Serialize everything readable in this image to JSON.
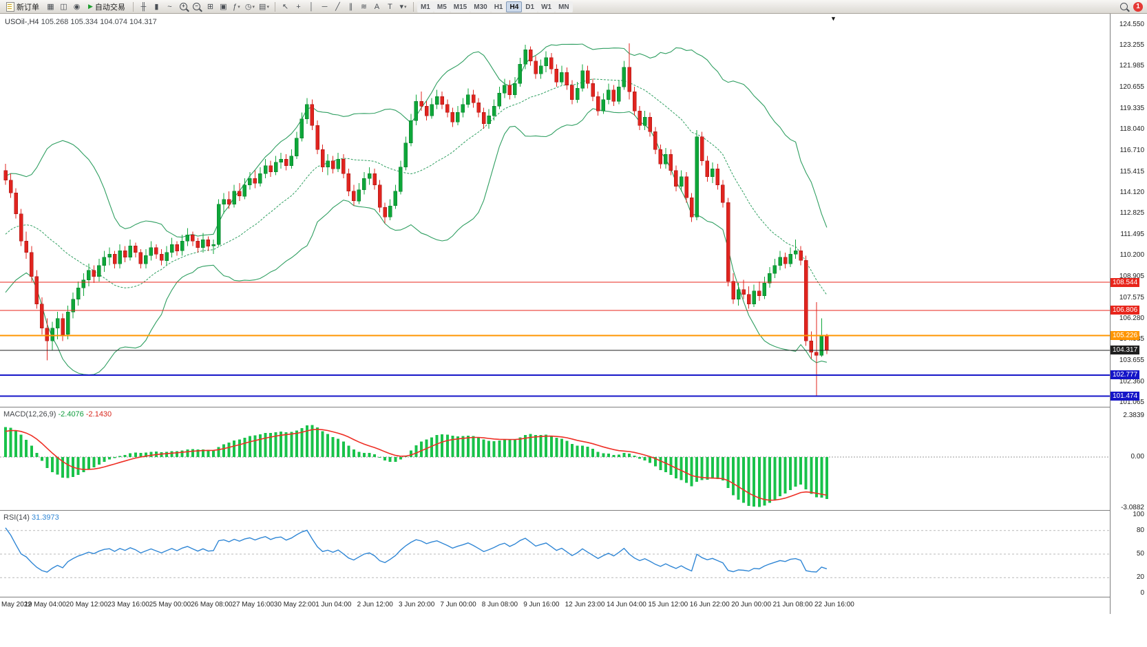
{
  "toolbar": {
    "new_order": {
      "label": "新订单"
    },
    "auto_trading": {
      "label": "自动交易",
      "icon_glyph": "▶"
    },
    "left_icons": [
      {
        "name": "charts-icon",
        "glyph": "▦"
      },
      {
        "name": "market-watch-icon",
        "glyph": "◫"
      },
      {
        "name": "alerts-icon",
        "glyph": "◉"
      }
    ],
    "chart_type_icons": [
      {
        "name": "bar-chart-icon",
        "glyph": "╫"
      },
      {
        "name": "candlestick-chart-icon",
        "glyph": "▮"
      },
      {
        "name": "line-chart-icon",
        "glyph": "~"
      }
    ],
    "zoom_icons": [
      {
        "name": "zoom-in-icon",
        "glyph": "+"
      },
      {
        "name": "zoom-out-icon",
        "glyph": "−"
      }
    ],
    "window_icons": [
      {
        "name": "tile-windows-icon",
        "glyph": "⊞"
      },
      {
        "name": "new-chart-icon",
        "glyph": "▣"
      },
      {
        "name": "indicators-icon",
        "glyph": "ƒ",
        "dropdown": true
      },
      {
        "name": "periods-icon",
        "glyph": "◷",
        "dropdown": true
      },
      {
        "name": "templates-icon",
        "glyph": "▤",
        "dropdown": true
      }
    ],
    "drawing_icons": [
      {
        "name": "cursor-icon",
        "glyph": "↖"
      },
      {
        "name": "crosshair-icon",
        "glyph": "+"
      },
      {
        "name": "vertical-line-icon",
        "glyph": "│"
      },
      {
        "name": "horizontal-line-icon",
        "glyph": "─"
      },
      {
        "name": "trendline-icon",
        "glyph": "╱"
      },
      {
        "name": "channel-icon",
        "glyph": "∥"
      },
      {
        "name": "fibonacci-icon",
        "glyph": "≋"
      },
      {
        "name": "text-icon",
        "glyph": "A"
      },
      {
        "name": "label-icon",
        "glyph": "T"
      },
      {
        "name": "arrows-icon",
        "glyph": "▾",
        "dropdown": true
      }
    ],
    "timeframes": [
      "M1",
      "M5",
      "M15",
      "M30",
      "H1",
      "H4",
      "D1",
      "W1",
      "MN"
    ],
    "active_timeframe": "H4",
    "badge_count": "1"
  },
  "chart": {
    "title_symbol": "USOil-,H4",
    "title_ohlc": "105.268 105.334 104.074 104.317",
    "price_ticks": [
      "124.550",
      "123.255",
      "121.985",
      "120.655",
      "119.335",
      "118.040",
      "116.710",
      "115.415",
      "114.120",
      "112.825",
      "111.495",
      "110.200",
      "108.905",
      "107.575",
      "106.280",
      "104.985",
      "103.655",
      "102.360",
      "101.065"
    ],
    "h_lines": [
      {
        "price": 108.544,
        "label": "108.544",
        "color": "#e8251b",
        "width": 1
      },
      {
        "price": 106.806,
        "label": "106.806",
        "color": "#e8251b",
        "width": 1
      },
      {
        "price": 105.226,
        "label": "105.226",
        "color": "#ff9500",
        "width": 2
      },
      {
        "price": 104.317,
        "label": "104.317",
        "color": "#1f1f1f",
        "width": 1
      },
      {
        "price": 102.777,
        "label": "102.777",
        "color": "#1515c8",
        "width": 2
      },
      {
        "price": 101.474,
        "label": "101.474",
        "color": "#1515c8",
        "width": 2
      }
    ]
  },
  "chart_data": {
    "type": "candlestick",
    "symbol": "USOil-",
    "timeframe": "H4",
    "colors": {
      "up": "#0ea639",
      "up_border": "#067a28",
      "down": "#e0241f",
      "down_border": "#a01512",
      "band": "#2e9e60",
      "macd_bar": "#19c24a",
      "macd_signal": "#ee2e24",
      "rsi": "#2f86d5"
    },
    "warmup_closes": [
      106.0,
      106.4,
      106.1,
      106.8,
      107.2,
      106.9,
      107.6,
      108.0,
      107.7,
      108.4,
      108.8,
      108.5,
      109.2,
      109.6,
      109.3,
      110.0,
      110.4,
      110.1,
      110.8,
      111.2,
      110.9,
      111.6,
      112.1,
      111.8,
      112.5,
      113.0,
      112.7,
      113.4,
      114.0,
      114.6
    ],
    "candles": [
      [
        115.5,
        115.9,
        114.6,
        114.9
      ],
      [
        114.9,
        115.3,
        113.8,
        114.1
      ],
      [
        114.1,
        114.4,
        112.5,
        112.8
      ],
      [
        112.8,
        113.1,
        110.8,
        111.1
      ],
      [
        111.1,
        111.7,
        110.0,
        110.4
      ],
      [
        110.4,
        110.8,
        108.6,
        108.9
      ],
      [
        108.9,
        109.3,
        106.9,
        107.2
      ],
      [
        107.2,
        107.6,
        105.3,
        105.7
      ],
      [
        105.7,
        106.3,
        103.7,
        104.9
      ],
      [
        104.9,
        106.1,
        104.3,
        105.7
      ],
      [
        105.7,
        106.7,
        105.0,
        106.3
      ],
      [
        106.3,
        106.6,
        104.9,
        105.3
      ],
      [
        105.3,
        107.1,
        105.0,
        106.7
      ],
      [
        106.7,
        107.9,
        106.3,
        107.5
      ],
      [
        107.5,
        108.6,
        107.1,
        108.2
      ],
      [
        108.2,
        109.1,
        107.7,
        108.7
      ],
      [
        108.7,
        109.7,
        108.3,
        109.3
      ],
      [
        109.3,
        109.6,
        108.5,
        108.9
      ],
      [
        108.9,
        110.0,
        108.6,
        109.6
      ],
      [
        109.6,
        110.5,
        109.2,
        110.1
      ],
      [
        110.1,
        110.7,
        109.6,
        110.3
      ],
      [
        110.3,
        110.5,
        109.4,
        109.7
      ],
      [
        109.7,
        110.9,
        109.4,
        110.5
      ],
      [
        110.5,
        110.8,
        109.8,
        110.1
      ],
      [
        110.1,
        111.2,
        109.9,
        110.8
      ],
      [
        110.8,
        111.0,
        110.1,
        110.4
      ],
      [
        110.4,
        110.6,
        109.4,
        109.7
      ],
      [
        109.7,
        110.6,
        109.4,
        110.2
      ],
      [
        110.2,
        111.1,
        109.9,
        110.7
      ],
      [
        110.7,
        110.9,
        110.0,
        110.3
      ],
      [
        110.3,
        110.6,
        109.6,
        109.9
      ],
      [
        109.9,
        110.8,
        109.6,
        110.4
      ],
      [
        110.4,
        111.3,
        110.1,
        110.9
      ],
      [
        110.9,
        111.1,
        110.2,
        110.5
      ],
      [
        110.5,
        111.5,
        110.2,
        111.1
      ],
      [
        111.1,
        111.9,
        110.8,
        111.5
      ],
      [
        111.5,
        111.7,
        110.8,
        111.1
      ],
      [
        111.1,
        111.3,
        110.4,
        110.7
      ],
      [
        110.7,
        111.6,
        110.4,
        111.2
      ],
      [
        111.2,
        111.4,
        110.5,
        110.8
      ],
      [
        110.8,
        111.2,
        110.3,
        110.9
      ],
      [
        110.9,
        113.7,
        110.8,
        113.4
      ],
      [
        113.4,
        114.1,
        112.8,
        113.7
      ],
      [
        113.7,
        114.2,
        113.1,
        113.4
      ],
      [
        113.4,
        114.6,
        113.2,
        114.2
      ],
      [
        114.2,
        114.7,
        113.6,
        113.9
      ],
      [
        113.9,
        115.0,
        113.7,
        114.6
      ],
      [
        114.6,
        115.4,
        114.3,
        115.0
      ],
      [
        115.0,
        115.5,
        114.4,
        114.7
      ],
      [
        114.7,
        115.7,
        114.5,
        115.3
      ],
      [
        115.3,
        116.2,
        115.0,
        115.8
      ],
      [
        115.8,
        116.1,
        115.1,
        115.4
      ],
      [
        115.4,
        116.4,
        115.2,
        116.0
      ],
      [
        116.0,
        116.6,
        115.6,
        116.2
      ],
      [
        116.2,
        116.5,
        115.5,
        115.8
      ],
      [
        115.8,
        116.8,
        115.6,
        116.4
      ],
      [
        116.4,
        117.9,
        116.2,
        117.5
      ],
      [
        117.5,
        119.1,
        117.3,
        118.7
      ],
      [
        118.7,
        120.0,
        118.4,
        119.6
      ],
      [
        119.6,
        119.9,
        118.0,
        118.3
      ],
      [
        118.3,
        118.6,
        116.5,
        116.8
      ],
      [
        116.8,
        117.1,
        115.4,
        115.7
      ],
      [
        115.7,
        116.5,
        115.2,
        116.1
      ],
      [
        116.1,
        116.4,
        115.3,
        115.6
      ],
      [
        115.6,
        116.6,
        115.4,
        116.2
      ],
      [
        116.2,
        116.5,
        115.0,
        115.3
      ],
      [
        115.3,
        115.6,
        113.9,
        114.2
      ],
      [
        114.2,
        114.6,
        113.3,
        113.6
      ],
      [
        113.6,
        114.7,
        113.4,
        114.3
      ],
      [
        114.3,
        115.4,
        114.0,
        115.0
      ],
      [
        115.0,
        115.7,
        114.6,
        115.3
      ],
      [
        115.3,
        115.6,
        114.3,
        114.6
      ],
      [
        114.6,
        114.9,
        112.9,
        113.2
      ],
      [
        113.2,
        113.5,
        112.2,
        112.6
      ],
      [
        112.6,
        113.7,
        112.4,
        113.3
      ],
      [
        113.3,
        114.6,
        113.1,
        114.2
      ],
      [
        114.2,
        116.1,
        114.0,
        115.7
      ],
      [
        115.7,
        117.6,
        115.5,
        117.2
      ],
      [
        117.2,
        119.0,
        117.0,
        118.6
      ],
      [
        118.6,
        120.2,
        118.3,
        119.8
      ],
      [
        119.8,
        120.4,
        119.2,
        119.5
      ],
      [
        119.5,
        119.8,
        118.6,
        118.9
      ],
      [
        118.9,
        120.0,
        118.7,
        119.6
      ],
      [
        119.6,
        120.5,
        119.3,
        120.1
      ],
      [
        120.1,
        120.4,
        119.3,
        119.6
      ],
      [
        119.6,
        119.9,
        118.8,
        119.1
      ],
      [
        119.1,
        119.4,
        118.2,
        118.5
      ],
      [
        118.5,
        119.5,
        118.3,
        119.1
      ],
      [
        119.1,
        120.0,
        118.8,
        119.6
      ],
      [
        119.6,
        120.6,
        119.4,
        120.2
      ],
      [
        120.2,
        120.5,
        119.4,
        119.7
      ],
      [
        119.7,
        120.0,
        118.8,
        119.1
      ],
      [
        119.1,
        119.4,
        118.1,
        118.4
      ],
      [
        118.4,
        119.3,
        118.1,
        118.9
      ],
      [
        118.9,
        119.9,
        118.6,
        119.5
      ],
      [
        119.5,
        120.7,
        119.3,
        120.3
      ],
      [
        120.3,
        121.2,
        120.0,
        120.8
      ],
      [
        120.8,
        121.1,
        119.9,
        120.2
      ],
      [
        120.2,
        121.3,
        120.0,
        120.9
      ],
      [
        120.9,
        122.5,
        120.7,
        122.1
      ],
      [
        122.1,
        123.3,
        121.8,
        123.0
      ],
      [
        123.0,
        123.2,
        122.0,
        122.3
      ],
      [
        122.3,
        122.6,
        121.2,
        121.5
      ],
      [
        121.5,
        122.4,
        121.2,
        122.0
      ],
      [
        122.0,
        122.9,
        121.6,
        122.5
      ],
      [
        122.5,
        122.8,
        121.5,
        121.8
      ],
      [
        121.8,
        122.1,
        120.7,
        121.0
      ],
      [
        121.0,
        122.0,
        120.8,
        121.6
      ],
      [
        121.6,
        121.9,
        120.5,
        120.8
      ],
      [
        120.8,
        121.1,
        119.6,
        119.9
      ],
      [
        119.9,
        121.0,
        119.7,
        120.6
      ],
      [
        120.6,
        122.1,
        120.4,
        121.7
      ],
      [
        121.7,
        122.0,
        120.6,
        120.9
      ],
      [
        120.9,
        121.2,
        119.8,
        120.1
      ],
      [
        120.1,
        120.4,
        118.9,
        119.2
      ],
      [
        119.2,
        120.3,
        119.0,
        119.9
      ],
      [
        119.9,
        120.9,
        119.6,
        120.5
      ],
      [
        120.5,
        120.8,
        119.5,
        119.8
      ],
      [
        119.8,
        121.1,
        119.6,
        120.7
      ],
      [
        120.7,
        122.3,
        120.5,
        121.9
      ],
      [
        121.9,
        123.4,
        119.9,
        120.4
      ],
      [
        120.4,
        120.7,
        118.9,
        119.2
      ],
      [
        119.2,
        119.5,
        118.0,
        118.3
      ],
      [
        118.3,
        119.2,
        118.0,
        118.8
      ],
      [
        118.8,
        119.1,
        117.6,
        117.9
      ],
      [
        117.9,
        118.2,
        116.5,
        116.8
      ],
      [
        116.8,
        117.1,
        115.6,
        115.9
      ],
      [
        115.9,
        116.9,
        115.6,
        116.5
      ],
      [
        116.5,
        116.8,
        115.2,
        115.5
      ],
      [
        115.5,
        115.8,
        114.2,
        114.5
      ],
      [
        114.5,
        115.5,
        114.2,
        115.1
      ],
      [
        115.1,
        115.4,
        113.5,
        113.8
      ],
      [
        113.8,
        114.1,
        112.3,
        112.6
      ],
      [
        112.6,
        118.0,
        112.4,
        117.6
      ],
      [
        117.6,
        117.9,
        115.8,
        116.1
      ],
      [
        116.1,
        116.4,
        114.8,
        115.1
      ],
      [
        115.1,
        116.0,
        114.7,
        115.6
      ],
      [
        115.6,
        115.9,
        114.3,
        114.6
      ],
      [
        114.6,
        114.9,
        113.2,
        113.5
      ],
      [
        113.5,
        113.8,
        108.3,
        108.6
      ],
      [
        108.6,
        109.1,
        107.2,
        107.5
      ],
      [
        107.5,
        108.5,
        107.1,
        108.1
      ],
      [
        108.1,
        108.7,
        107.5,
        107.8
      ],
      [
        107.8,
        108.3,
        106.9,
        107.2
      ],
      [
        107.2,
        108.4,
        107.0,
        108.0
      ],
      [
        108.0,
        108.6,
        107.4,
        107.7
      ],
      [
        107.7,
        108.9,
        107.5,
        108.5
      ],
      [
        108.5,
        109.5,
        108.2,
        109.1
      ],
      [
        109.1,
        110.0,
        108.8,
        109.6
      ],
      [
        109.6,
        110.5,
        109.3,
        110.1
      ],
      [
        110.1,
        110.4,
        109.4,
        109.7
      ],
      [
        109.7,
        110.7,
        109.5,
        110.3
      ],
      [
        110.3,
        111.2,
        110.0,
        110.5
      ],
      [
        110.5,
        110.8,
        109.6,
        109.9
      ],
      [
        109.9,
        110.2,
        104.6,
        104.9
      ],
      [
        104.9,
        105.5,
        103.8,
        104.2
      ],
      [
        104.2,
        107.3,
        101.5,
        104.0
      ],
      [
        104.0,
        106.3,
        103.9,
        105.268
      ],
      [
        105.268,
        105.334,
        104.074,
        104.317
      ]
    ],
    "indicators": {
      "bollinger": {
        "period": 20,
        "deviation": 2
      },
      "macd": {
        "label": "MACD(12,26,9)",
        "fast": 12,
        "slow": 26,
        "signal": 9,
        "value": "-2.4076",
        "signal_value": "-2.1430",
        "axis": [
          "2.3839",
          "0.00",
          "-3.0882"
        ]
      },
      "rsi": {
        "label": "RSI(14)",
        "period": 14,
        "value": "31.3973",
        "levels": [
          80,
          50,
          20
        ],
        "axis": [
          "100",
          "80",
          "50",
          "20",
          "0"
        ]
      }
    },
    "time_labels": [
      "May 2022",
      "19 May 04:00",
      "20 May 12:00",
      "23 May 16:00",
      "25 May 00:00",
      "26 May 08:00",
      "27 May 16:00",
      "30 May 22:00",
      "1 Jun 04:00",
      "2 Jun 12:00",
      "3 Jun 20:00",
      "7 Jun 00:00",
      "8 Jun 08:00",
      "9 Jun 16:00",
      "12 Jun 23:00",
      "14 Jun 04:00",
      "15 Jun 12:00",
      "16 Jun 22:00",
      "20 Jun 00:00",
      "21 Jun 08:00",
      "22 Jun 16:00"
    ]
  }
}
